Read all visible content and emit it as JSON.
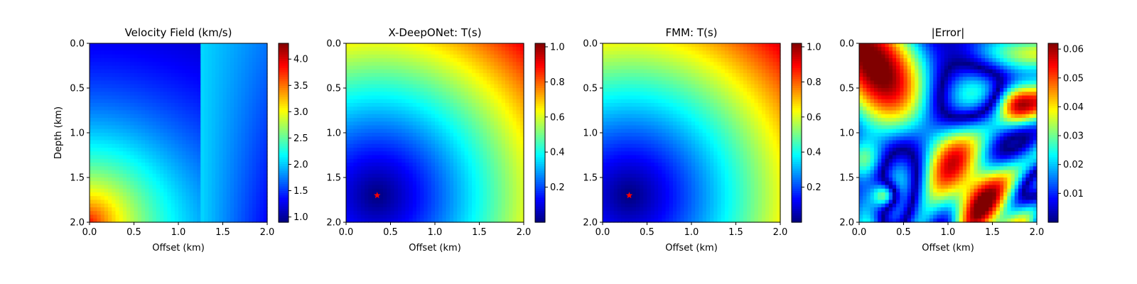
{
  "chart_data": [
    {
      "type": "heatmap",
      "title": "Velocity Field (km/s)",
      "xlabel": "Offset (km)",
      "ylabel": "Depth (km)",
      "x_ticks": [
        "0.0",
        "0.5",
        "1.0",
        "1.5",
        "2.0"
      ],
      "y_ticks": [
        "0.0",
        "0.5",
        "1.0",
        "1.5",
        "2.0"
      ],
      "xlim": [
        0,
        2
      ],
      "ylim": [
        2,
        0
      ],
      "y_inverted": true,
      "colormap": "jet",
      "colorbar": {
        "min": 0.9,
        "max": 4.3,
        "ticks": [
          "1.0",
          "1.5",
          "2.0",
          "2.5",
          "3.0",
          "3.5",
          "4.0"
        ]
      },
      "field": "velocity"
    },
    {
      "type": "heatmap",
      "title": "X-DeepONet: T(s)",
      "xlabel": "Offset (km)",
      "ylabel": "",
      "x_ticks": [
        "0.0",
        "0.5",
        "1.0",
        "1.5",
        "2.0"
      ],
      "y_ticks": [
        "0.0",
        "0.5",
        "1.0",
        "1.5",
        "2.0"
      ],
      "xlim": [
        0,
        2
      ],
      "ylim": [
        2,
        0
      ],
      "y_inverted": true,
      "colormap": "jet",
      "colorbar": {
        "min": 0.0,
        "max": 1.02,
        "ticks": [
          "0.2",
          "0.4",
          "0.6",
          "0.8",
          "1.0"
        ]
      },
      "source": {
        "x": 0.35,
        "z": 1.7,
        "marker": "star",
        "color": "#ff0000"
      },
      "field": "traveltime"
    },
    {
      "type": "heatmap",
      "title": "FMM: T(s)",
      "xlabel": "Offset (km)",
      "ylabel": "",
      "x_ticks": [
        "0.0",
        "0.5",
        "1.0",
        "1.5",
        "2.0"
      ],
      "y_ticks": [
        "0.0",
        "0.5",
        "1.0",
        "1.5",
        "2.0"
      ],
      "xlim": [
        0,
        2
      ],
      "ylim": [
        2,
        0
      ],
      "y_inverted": true,
      "colormap": "jet",
      "colorbar": {
        "min": 0.0,
        "max": 1.02,
        "ticks": [
          "0.2",
          "0.4",
          "0.6",
          "0.8",
          "1.0"
        ]
      },
      "source": {
        "x": 0.3,
        "z": 1.7,
        "marker": "star",
        "color": "#ff0000"
      },
      "field": "traveltime"
    },
    {
      "type": "heatmap",
      "title": "|Error|",
      "xlabel": "Offset (km)",
      "ylabel": "",
      "x_ticks": [
        "0.0",
        "0.5",
        "1.0",
        "1.5",
        "2.0"
      ],
      "y_ticks": [
        "0.0",
        "0.5",
        "1.0",
        "1.5",
        "2.0"
      ],
      "xlim": [
        0,
        2
      ],
      "ylim": [
        2,
        0
      ],
      "y_inverted": true,
      "colormap": "jet",
      "colorbar": {
        "min": 0.0,
        "max": 0.062,
        "ticks": [
          "0.01",
          "0.02",
          "0.03",
          "0.04",
          "0.05",
          "0.06"
        ]
      },
      "field": "error"
    }
  ]
}
